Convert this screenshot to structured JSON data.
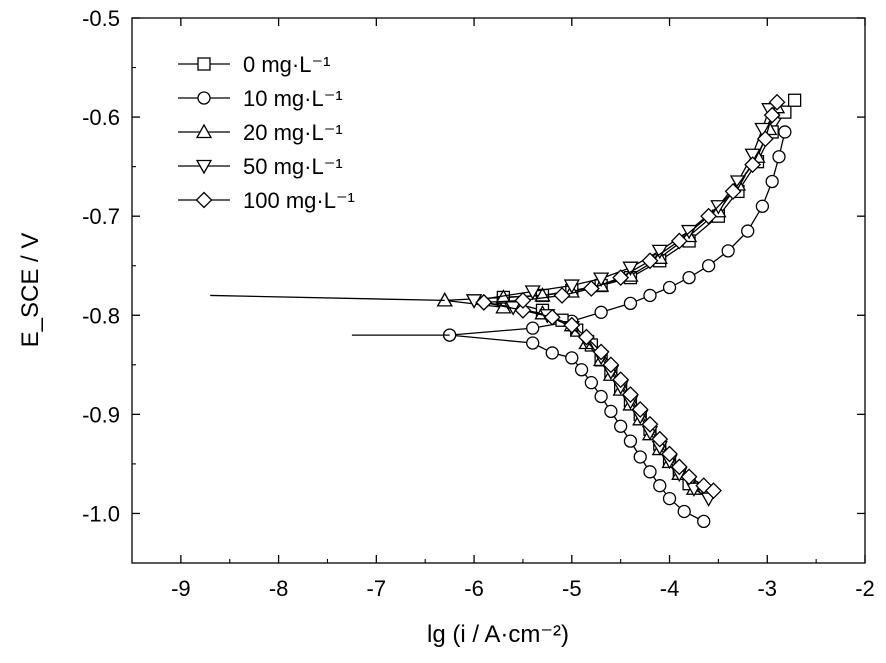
{
  "chart_data": {
    "type": "line",
    "title": "",
    "xlabel": "lg (i / A·cm⁻²)",
    "ylabel": "E_SCE / V",
    "xlim": [
      -9.5,
      -2
    ],
    "ylim": [
      -1.05,
      -0.5
    ],
    "xticks": [
      -9,
      -8,
      -7,
      -6,
      -5,
      -4,
      -3,
      -2
    ],
    "yticks": [
      -0.5,
      -0.6,
      -0.7,
      -0.8,
      -0.9,
      -1.0
    ],
    "xtick_labels": [
      "-9",
      "-8",
      "-7",
      "-6",
      "-5",
      "-4",
      "-3",
      "-2"
    ],
    "ytick_labels": [
      "-0.5",
      "-0.6",
      "-0.7",
      "-0.8",
      "-0.9",
      "-1.0"
    ],
    "legend_placement": "top-left",
    "grid": false,
    "series": [
      {
        "name": "0 mg·L⁻¹",
        "marker": "square",
        "cathodic": [
          [
            -5.7,
            -0.785
          ],
          [
            -5.3,
            -0.795
          ],
          [
            -5.1,
            -0.805
          ],
          [
            -4.95,
            -0.815
          ],
          [
            -4.8,
            -0.83
          ],
          [
            -4.7,
            -0.845
          ],
          [
            -4.6,
            -0.858
          ],
          [
            -4.5,
            -0.872
          ],
          [
            -4.4,
            -0.886
          ],
          [
            -4.3,
            -0.9
          ],
          [
            -4.2,
            -0.915
          ],
          [
            -4.1,
            -0.93
          ],
          [
            -4.0,
            -0.945
          ],
          [
            -3.9,
            -0.958
          ],
          [
            -3.8,
            -0.97
          ]
        ],
        "anodic": [
          [
            -5.7,
            -0.782
          ],
          [
            -5.3,
            -0.78
          ],
          [
            -5.0,
            -0.775
          ],
          [
            -4.7,
            -0.77
          ],
          [
            -4.4,
            -0.762
          ],
          [
            -4.1,
            -0.745
          ],
          [
            -3.8,
            -0.725
          ],
          [
            -3.5,
            -0.7
          ],
          [
            -3.3,
            -0.675
          ],
          [
            -3.1,
            -0.645
          ],
          [
            -2.95,
            -0.615
          ],
          [
            -2.82,
            -0.595
          ],
          [
            -2.72,
            -0.583
          ]
        ]
      },
      {
        "name": "10 mg·L⁻¹",
        "marker": "circle",
        "cathodic": [
          [
            -6.25,
            -0.82
          ],
          [
            -5.4,
            -0.828
          ],
          [
            -5.2,
            -0.838
          ],
          [
            -5.0,
            -0.843
          ],
          [
            -4.9,
            -0.855
          ],
          [
            -4.8,
            -0.868
          ],
          [
            -4.7,
            -0.882
          ],
          [
            -4.6,
            -0.897
          ],
          [
            -4.5,
            -0.912
          ],
          [
            -4.4,
            -0.927
          ],
          [
            -4.3,
            -0.943
          ],
          [
            -4.2,
            -0.958
          ],
          [
            -4.1,
            -0.972
          ],
          [
            -4.0,
            -0.985
          ],
          [
            -3.85,
            -0.998
          ],
          [
            -3.65,
            -1.008
          ]
        ],
        "anodic": [
          [
            -6.25,
            -0.82
          ],
          [
            -5.4,
            -0.813
          ],
          [
            -5.0,
            -0.806
          ],
          [
            -4.7,
            -0.797
          ],
          [
            -4.4,
            -0.788
          ],
          [
            -4.2,
            -0.78
          ],
          [
            -4.0,
            -0.772
          ],
          [
            -3.8,
            -0.762
          ],
          [
            -3.6,
            -0.75
          ],
          [
            -3.4,
            -0.735
          ],
          [
            -3.2,
            -0.715
          ],
          [
            -3.05,
            -0.69
          ],
          [
            -2.95,
            -0.665
          ],
          [
            -2.88,
            -0.64
          ],
          [
            -2.82,
            -0.615
          ]
        ]
      },
      {
        "name": "20 mg·L⁻¹",
        "marker": "triangle-up",
        "cathodic": [
          [
            -6.3,
            -0.785
          ],
          [
            -5.7,
            -0.792
          ],
          [
            -5.3,
            -0.798
          ],
          [
            -5.0,
            -0.81
          ],
          [
            -4.85,
            -0.828
          ],
          [
            -4.7,
            -0.845
          ],
          [
            -4.6,
            -0.86
          ],
          [
            -4.5,
            -0.875
          ],
          [
            -4.4,
            -0.89
          ],
          [
            -4.3,
            -0.905
          ],
          [
            -4.2,
            -0.92
          ],
          [
            -4.1,
            -0.935
          ],
          [
            -4.0,
            -0.948
          ],
          [
            -3.9,
            -0.96
          ],
          [
            -3.75,
            -0.975
          ]
        ],
        "anodic": [
          [
            -6.3,
            -0.785
          ],
          [
            -5.7,
            -0.782
          ],
          [
            -5.3,
            -0.78
          ],
          [
            -5.0,
            -0.776
          ],
          [
            -4.7,
            -0.77
          ],
          [
            -4.4,
            -0.76
          ],
          [
            -4.1,
            -0.742
          ],
          [
            -3.8,
            -0.72
          ],
          [
            -3.5,
            -0.695
          ],
          [
            -3.3,
            -0.668
          ],
          [
            -3.1,
            -0.64
          ],
          [
            -2.98,
            -0.612
          ],
          [
            -2.9,
            -0.59
          ]
        ]
      },
      {
        "name": "50 mg·L⁻¹",
        "marker": "triangle-down",
        "cathodic": [
          [
            -6.0,
            -0.785
          ],
          [
            -5.6,
            -0.792
          ],
          [
            -5.25,
            -0.8
          ],
          [
            -5.0,
            -0.812
          ],
          [
            -4.85,
            -0.826
          ],
          [
            -4.7,
            -0.842
          ],
          [
            -4.6,
            -0.857
          ],
          [
            -4.5,
            -0.872
          ],
          [
            -4.4,
            -0.887
          ],
          [
            -4.3,
            -0.902
          ],
          [
            -4.2,
            -0.918
          ],
          [
            -4.1,
            -0.933
          ],
          [
            -4.0,
            -0.947
          ],
          [
            -3.9,
            -0.96
          ],
          [
            -3.75,
            -0.975
          ],
          [
            -3.6,
            -0.985
          ]
        ],
        "anodic": [
          [
            -6.0,
            -0.785
          ],
          [
            -5.4,
            -0.776
          ],
          [
            -5.0,
            -0.77
          ],
          [
            -4.7,
            -0.763
          ],
          [
            -4.4,
            -0.752
          ],
          [
            -4.1,
            -0.735
          ],
          [
            -3.8,
            -0.715
          ],
          [
            -3.5,
            -0.69
          ],
          [
            -3.3,
            -0.665
          ],
          [
            -3.15,
            -0.638
          ],
          [
            -3.05,
            -0.612
          ],
          [
            -2.98,
            -0.592
          ]
        ]
      },
      {
        "name": "100 mg·L⁻¹",
        "marker": "diamond",
        "cathodic": [
          [
            -5.9,
            -0.787
          ],
          [
            -5.5,
            -0.795
          ],
          [
            -5.2,
            -0.802
          ],
          [
            -5.0,
            -0.81
          ],
          [
            -4.85,
            -0.822
          ],
          [
            -4.7,
            -0.837
          ],
          [
            -4.6,
            -0.85
          ],
          [
            -4.5,
            -0.865
          ],
          [
            -4.4,
            -0.88
          ],
          [
            -4.3,
            -0.895
          ],
          [
            -4.2,
            -0.91
          ],
          [
            -4.1,
            -0.925
          ],
          [
            -4.0,
            -0.94
          ],
          [
            -3.9,
            -0.953
          ],
          [
            -3.8,
            -0.963
          ],
          [
            -3.65,
            -0.972
          ],
          [
            -3.55,
            -0.977
          ]
        ],
        "anodic": [
          [
            -5.9,
            -0.787
          ],
          [
            -5.5,
            -0.785
          ],
          [
            -5.1,
            -0.78
          ],
          [
            -4.8,
            -0.773
          ],
          [
            -4.5,
            -0.762
          ],
          [
            -4.2,
            -0.745
          ],
          [
            -3.9,
            -0.725
          ],
          [
            -3.6,
            -0.7
          ],
          [
            -3.35,
            -0.675
          ],
          [
            -3.15,
            -0.648
          ],
          [
            -3.02,
            -0.622
          ],
          [
            -2.95,
            -0.598
          ],
          [
            -2.9,
            -0.585
          ]
        ]
      }
    ]
  }
}
